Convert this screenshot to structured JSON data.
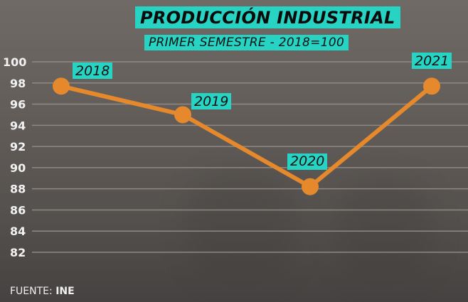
{
  "header": {
    "title": "PRODUCCIÓN INDUSTRIAL",
    "subtitle": "PRIMER SEMESTRE - 2018=100"
  },
  "footer": {
    "source_label": "FUENTE:",
    "source_value": "INE"
  },
  "colors": {
    "accent": "#27d3c2",
    "line": "#e5892c",
    "background": "#635e5a"
  },
  "chart_data": {
    "type": "line",
    "title": "PRODUCCIÓN INDUSTRIAL",
    "subtitle": "PRIMER SEMESTRE - 2018=100",
    "categories": [
      "2018",
      "2019",
      "2020",
      "2021"
    ],
    "values": [
      97.7,
      95.0,
      88.2,
      97.7
    ],
    "series": [
      {
        "name": "Producción industrial",
        "values": [
          97.7,
          95.0,
          88.2,
          97.7
        ]
      }
    ],
    "xlabel": "",
    "ylabel": "",
    "ylim": [
      82,
      100
    ],
    "yticks": [
      "100",
      "98",
      "96",
      "94",
      "92",
      "90",
      "88",
      "86",
      "84",
      "82"
    ],
    "grid": true,
    "legend": "none",
    "annotations": [
      "2018",
      "2019",
      "2020",
      "2021"
    ],
    "source": "FUENTE: INE"
  }
}
